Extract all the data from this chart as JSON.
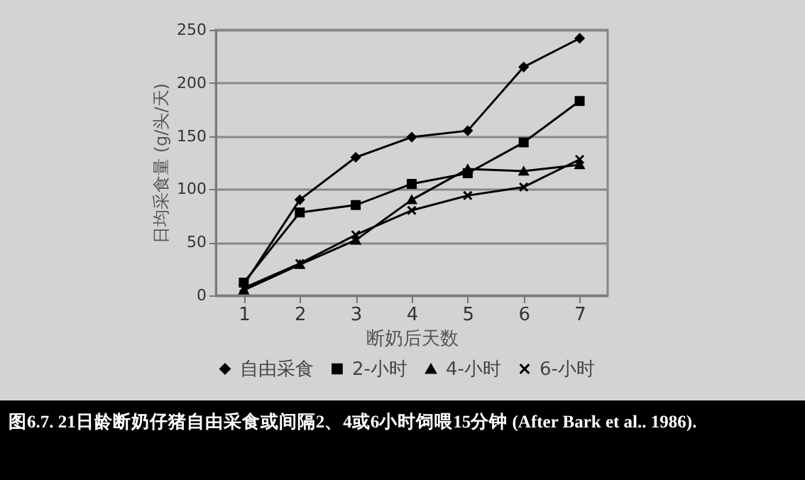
{
  "chart_data": {
    "type": "line",
    "xlabel": "断奶后天数",
    "ylabel": "日均采食量 (g/头/天)",
    "categories": [
      "1",
      "2",
      "3",
      "4",
      "5",
      "6",
      "7"
    ],
    "series": [
      {
        "name": "自由采食",
        "color": "#000000",
        "marker": "diamond",
        "values": [
          10,
          90,
          130,
          149,
          155,
          215,
          242
        ]
      },
      {
        "name": "2-小时",
        "color": "#000000",
        "marker": "square",
        "values": [
          12,
          78,
          85,
          105,
          115,
          144,
          183
        ]
      },
      {
        "name": "4-小时",
        "color": "#000000",
        "marker": "triangle",
        "values": [
          5,
          29,
          52,
          90,
          119,
          117,
          123
        ]
      },
      {
        "name": "6-小时",
        "color": "#000000",
        "marker": "cross",
        "values": [
          7,
          30,
          57,
          80,
          94,
          102,
          128
        ]
      }
    ],
    "ylim": [
      0,
      250
    ],
    "yticks": [
      0,
      50,
      100,
      150,
      200,
      250
    ],
    "grid": "y",
    "legend": "bottom",
    "line_style": "solid",
    "annotations": [
      "图6.7. 21日龄断奶仔猪自由采食或间隔2、4或6小时饲喂15分钟 (After Bark et al.. 1986)."
    ]
  }
}
